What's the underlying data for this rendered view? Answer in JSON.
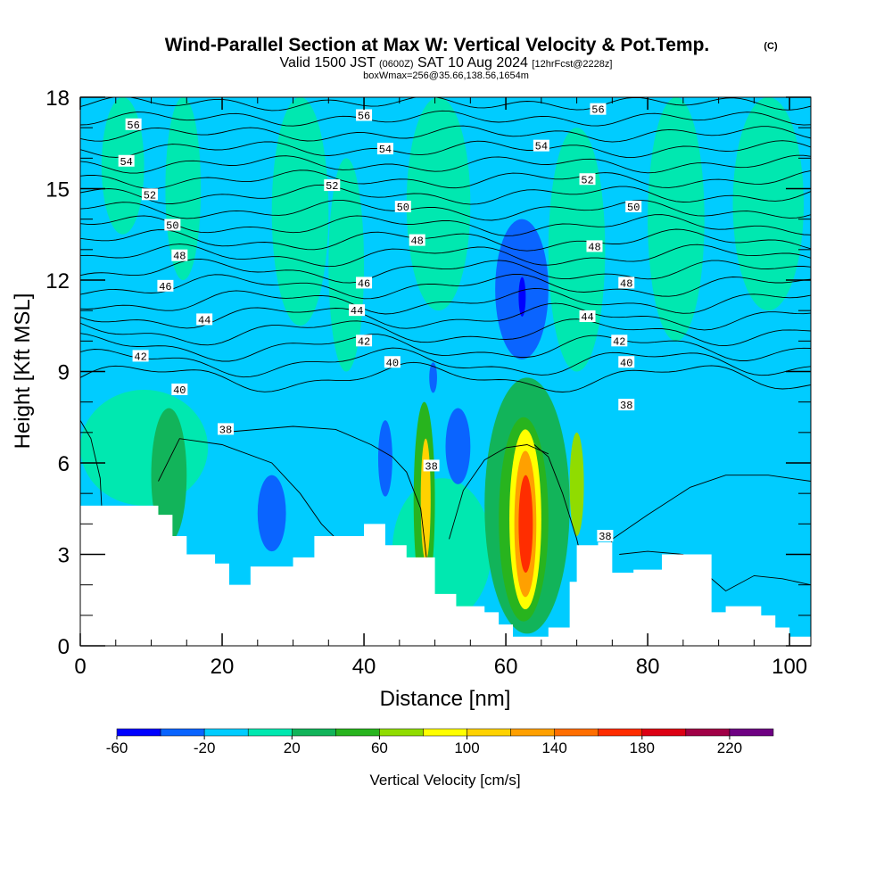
{
  "chart_data": {
    "type": "heatmap",
    "title": "Wind-Parallel Section at Max W: Vertical Velocity & Pot.Temp.",
    "title_tag": "(C)",
    "subtitle_parts": [
      "Valid 1500 JST",
      "(0600Z)",
      "SAT 10 Aug 2024",
      "[12hrFcst@2228z]"
    ],
    "subtitle2": "boxWmax=256@35.66,138.56,1654m",
    "xlabel": "Distance [nm]",
    "ylabel": "Height [Kft MSL]",
    "xlim": [
      0,
      103
    ],
    "ylim": [
      0,
      18
    ],
    "xticks": [
      0,
      20,
      40,
      60,
      80,
      100
    ],
    "yticks": [
      0,
      3,
      6,
      9,
      12,
      15,
      18
    ],
    "fill_variable": "Vertical Velocity [cm/s]",
    "colorbar": {
      "title": "Vertical Velocity [cm/s]",
      "levels": [
        -60,
        -40,
        -20,
        0,
        20,
        40,
        60,
        80,
        100,
        120,
        140,
        160,
        180,
        200,
        220,
        240
      ],
      "colors": [
        "#0000ff",
        "#0a64ff",
        "#00ccff",
        "#00e8b0",
        "#12b45a",
        "#28b41e",
        "#90dc00",
        "#ffff00",
        "#ffd200",
        "#ffa000",
        "#ff6e00",
        "#ff2d00",
        "#dc0014",
        "#a00046",
        "#6e0082"
      ],
      "tick_labels": [
        "-60",
        "-20",
        "20",
        "60",
        "100",
        "140",
        "180",
        "220"
      ]
    },
    "background_value": "-20 to 0",
    "cells": [
      {
        "x": [
          3,
          9
        ],
        "y": [
          13.5,
          18
        ],
        "v": 10
      },
      {
        "x": [
          12,
          17
        ],
        "y": [
          12,
          18
        ],
        "v": 10
      },
      {
        "x": [
          27,
          35
        ],
        "y": [
          10.5,
          18
        ],
        "v": 10
      },
      {
        "x": [
          35,
          40
        ],
        "y": [
          9,
          16
        ],
        "v": 10
      },
      {
        "x": [
          46,
          55
        ],
        "y": [
          11,
          18
        ],
        "v": 10
      },
      {
        "x": [
          66,
          74
        ],
        "y": [
          9,
          17
        ],
        "v": 10
      },
      {
        "x": [
          80,
          88
        ],
        "y": [
          10,
          18
        ],
        "v": 10
      },
      {
        "x": [
          92,
          102
        ],
        "y": [
          11,
          18
        ],
        "v": 10
      },
      {
        "x": [
          0,
          18
        ],
        "y": [
          4.6,
          8.4
        ],
        "v": 10
      },
      {
        "x": [
          44,
          58
        ],
        "y": [
          0.8,
          5.5
        ],
        "v": 10
      },
      {
        "x": [
          57,
          69
        ],
        "y": [
          0.4,
          8.8
        ],
        "v": 30
      },
      {
        "x": [
          10,
          15
        ],
        "y": [
          3.4,
          7.8
        ],
        "v": 30
      },
      {
        "x": [
          47,
          50
        ],
        "y": [
          1.5,
          8
        ],
        "v": 50
      },
      {
        "x": [
          69,
          71
        ],
        "y": [
          3.6,
          7
        ],
        "v": 70
      },
      {
        "x": [
          48,
          49.4
        ],
        "y": [
          2.8,
          6.8
        ],
        "v": 100
      },
      {
        "x": [
          59,
          66
        ],
        "y": [
          0.8,
          7.5
        ],
        "v": 50
      },
      {
        "x": [
          60.5,
          65
        ],
        "y": [
          1.2,
          7.1
        ],
        "v": 90
      },
      {
        "x": [
          61.2,
          64.3
        ],
        "y": [
          1.6,
          6.4
        ],
        "v": 130
      },
      {
        "x": [
          61.8,
          63.8
        ],
        "y": [
          2.4,
          5.6
        ],
        "v": 170
      },
      {
        "x": [
          58.5,
          66
        ],
        "y": [
          9.4,
          14
        ],
        "v": -30
      },
      {
        "x": [
          61.8,
          62.8
        ],
        "y": [
          10.8,
          12.1
        ],
        "v": -50
      },
      {
        "x": [
          25,
          29
        ],
        "y": [
          3.1,
          5.6
        ],
        "v": -30
      },
      {
        "x": [
          42,
          44
        ],
        "y": [
          4.9,
          7.4
        ],
        "v": -30
      },
      {
        "x": [
          51.5,
          55
        ],
        "y": [
          5.3,
          7.8
        ],
        "v": -30
      },
      {
        "x": [
          49.2,
          50.3
        ],
        "y": [
          8.3,
          9.3
        ],
        "v": -30
      }
    ],
    "terrain_profile": {
      "x": [
        0,
        11,
        13,
        15,
        19,
        21,
        24,
        28,
        30,
        33,
        37,
        40,
        43,
        46,
        50,
        53,
        57,
        59,
        61,
        64,
        66,
        69,
        70,
        73,
        75,
        78,
        82,
        85,
        89,
        91,
        93,
        96,
        98,
        100,
        103
      ],
      "y": [
        4.6,
        4.3,
        3.6,
        3.0,
        2.7,
        2.0,
        2.6,
        2.6,
        2.9,
        3.6,
        3.6,
        4.0,
        3.3,
        2.9,
        1.7,
        1.3,
        1.1,
        0.7,
        0.3,
        0.3,
        0.6,
        2.1,
        3.3,
        3.4,
        2.4,
        2.5,
        3.0,
        3.0,
        1.1,
        1.3,
        1.3,
        1.0,
        0.6,
        0.3,
        0.3
      ]
    },
    "contours": {
      "variable": "Potential temperature [C]",
      "base_heights": [
        8.8,
        9.3,
        9.8,
        10.3,
        10.8,
        11.3,
        11.8,
        12.3,
        12.8,
        13.3,
        13.8,
        14.3,
        14.8,
        15.3,
        15.8,
        16.3,
        16.8,
        17.3,
        17.8
      ],
      "labels": [
        {
          "text": "56",
          "x": 7.5,
          "y": 17.1
        },
        {
          "text": "54",
          "x": 6.5,
          "y": 15.9
        },
        {
          "text": "52",
          "x": 9.8,
          "y": 14.8
        },
        {
          "text": "50",
          "x": 13,
          "y": 13.8
        },
        {
          "text": "48",
          "x": 14,
          "y": 12.8
        },
        {
          "text": "46",
          "x": 12,
          "y": 11.8
        },
        {
          "text": "44",
          "x": 17.5,
          "y": 10.7
        },
        {
          "text": "42",
          "x": 8.5,
          "y": 9.5
        },
        {
          "text": "40",
          "x": 14,
          "y": 8.4
        },
        {
          "text": "38",
          "x": 20.5,
          "y": 7.1
        },
        {
          "text": "56",
          "x": 40,
          "y": 17.4
        },
        {
          "text": "54",
          "x": 43,
          "y": 16.3
        },
        {
          "text": "52",
          "x": 35.5,
          "y": 15.1
        },
        {
          "text": "50",
          "x": 45.5,
          "y": 14.4
        },
        {
          "text": "48",
          "x": 47.5,
          "y": 13.3
        },
        {
          "text": "46",
          "x": 40,
          "y": 11.9
        },
        {
          "text": "44",
          "x": 39,
          "y": 11.0
        },
        {
          "text": "42",
          "x": 40,
          "y": 10.0
        },
        {
          "text": "40",
          "x": 44,
          "y": 9.3
        },
        {
          "text": "38",
          "x": 49.5,
          "y": 5.9
        },
        {
          "text": "56",
          "x": 73,
          "y": 17.6
        },
        {
          "text": "54",
          "x": 65,
          "y": 16.4
        },
        {
          "text": "52",
          "x": 71.5,
          "y": 15.3
        },
        {
          "text": "50",
          "x": 78,
          "y": 14.4
        },
        {
          "text": "48",
          "x": 72.5,
          "y": 13.1
        },
        {
          "text": "48",
          "x": 77,
          "y": 11.9
        },
        {
          "text": "44",
          "x": 71.5,
          "y": 10.8
        },
        {
          "text": "42",
          "x": 76,
          "y": 10.0
        },
        {
          "text": "40",
          "x": 77,
          "y": 9.3
        },
        {
          "text": "38",
          "x": 77,
          "y": 7.9
        },
        {
          "text": "38",
          "x": 74,
          "y": 3.6
        }
      ]
    },
    "grid": false,
    "legend": "bottom"
  }
}
